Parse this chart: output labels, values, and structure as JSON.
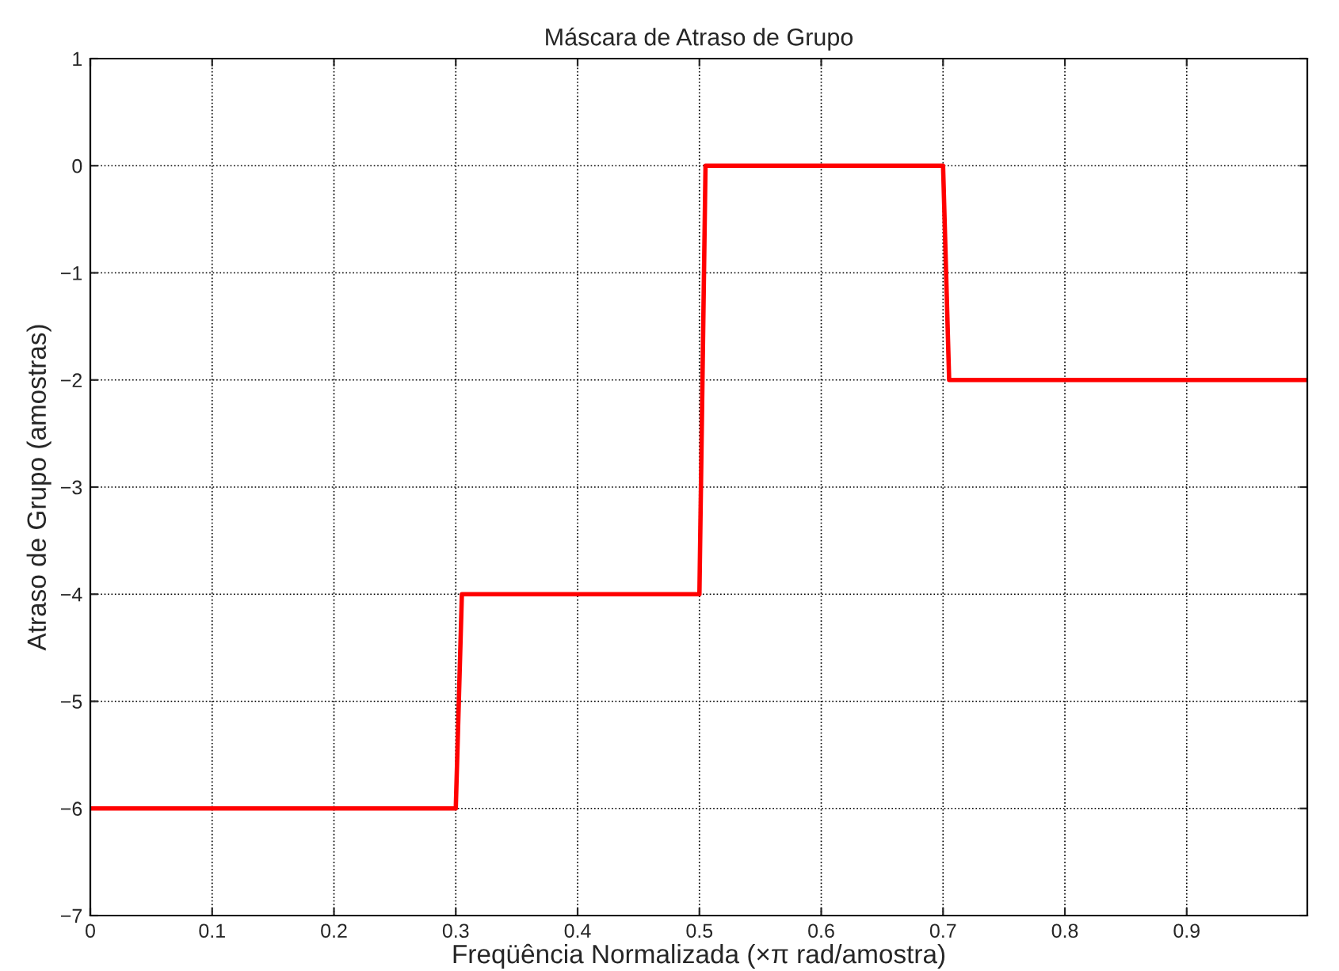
{
  "chart_data": {
    "type": "line",
    "title": "Máscara de Atraso de Grupo",
    "xlabel": "Freqüência Normalizada (×π rad/amostra)",
    "ylabel": "Atraso de Grupo (amostras)",
    "x": [
      0,
      0.3,
      0.305,
      0.5,
      0.505,
      0.7,
      0.705,
      0.999
    ],
    "series": [
      {
        "color": "#ff0000",
        "values": [
          -6,
          -6,
          -4,
          -4,
          0,
          0,
          -2,
          -2
        ]
      }
    ],
    "xlim": [
      0,
      0.999
    ],
    "xticks": [
      0,
      0.1,
      0.2,
      0.3,
      0.4,
      0.5,
      0.6,
      0.7,
      0.8,
      0.9
    ],
    "ylim": [
      -7,
      1
    ],
    "yticks": [
      {
        "value": -7,
        "label": "−7"
      },
      {
        "value": -6,
        "label": "−6"
      },
      {
        "value": -5,
        "label": "−5"
      },
      {
        "value": -4,
        "label": "−4"
      },
      {
        "value": -3,
        "label": "−3"
      },
      {
        "value": -2,
        "label": "−2"
      },
      {
        "value": -1,
        "label": "−1"
      },
      0,
      1
    ],
    "grid": true,
    "line_style": "solid"
  }
}
